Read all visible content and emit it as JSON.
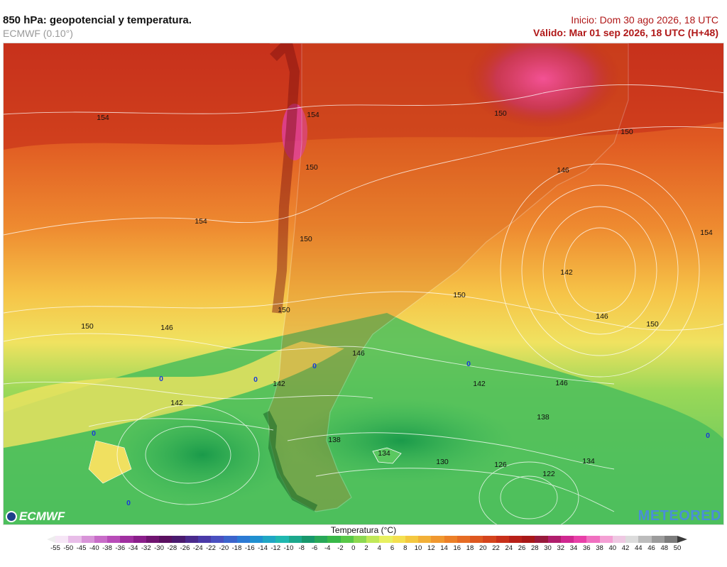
{
  "header": {
    "title": "850 hPa: geopotencial y temperatura.",
    "model": "ECMWF (0.10°)",
    "init": "Inicio: Dom 30 ago 2026, 18 UTC",
    "valid": "Válido: Mar 01 sep 2026, 18 UTC (H+48)"
  },
  "logos": {
    "left": "ECMWF",
    "right": "METEORED"
  },
  "map": {
    "contour_labels": [
      "154",
      "154",
      "154",
      "154",
      "150",
      "150",
      "150",
      "150",
      "150",
      "150",
      "150",
      "150",
      "146",
      "146",
      "146",
      "146",
      "146",
      "146",
      "142",
      "142",
      "142",
      "142",
      "138",
      "138",
      "134",
      "134",
      "130",
      "126",
      "122",
      "0",
      "0",
      "0",
      "0",
      "0",
      "0",
      "0"
    ]
  },
  "legend": {
    "title": "Temperatura (°C)",
    "ticks": [
      "-55",
      "-50",
      "-45",
      "-40",
      "-38",
      "-36",
      "-34",
      "-32",
      "-30",
      "-28",
      "-26",
      "-24",
      "-22",
      "-20",
      "-18",
      "-16",
      "-14",
      "-12",
      "-10",
      "-8",
      "-6",
      "-4",
      "-2",
      "0",
      "2",
      "4",
      "6",
      "8",
      "10",
      "12",
      "14",
      "16",
      "18",
      "20",
      "22",
      "24",
      "26",
      "28",
      "30",
      "32",
      "34",
      "36",
      "38",
      "40",
      "42",
      "44",
      "46",
      "48",
      "50"
    ],
    "colors": [
      "#f6e6f6",
      "#e8bde8",
      "#d894d8",
      "#c86cc8",
      "#b84cb8",
      "#a030a0",
      "#8a1e8a",
      "#701470",
      "#5a1060",
      "#4a1a6e",
      "#4a2a8c",
      "#4a3aa8",
      "#4a50c0",
      "#3c64cc",
      "#2c7ad4",
      "#2090d0",
      "#20a6c4",
      "#20b8b0",
      "#1ca88c",
      "#18986c",
      "#28a858",
      "#38b848",
      "#58c848",
      "#8cd850",
      "#c0e858",
      "#e8f060",
      "#f4e050",
      "#f4c840",
      "#f2b038",
      "#f09830",
      "#ec8028",
      "#e66c24",
      "#de5820",
      "#d4441c",
      "#c8301a",
      "#b82018",
      "#a81818",
      "#981a3c",
      "#b01e6c",
      "#d02890",
      "#e840a8",
      "#f070c0",
      "#f4a0d4",
      "#eec8e2",
      "#dcdcdc",
      "#bcbcbc",
      "#9c9c9c",
      "#7c7c7c"
    ]
  }
}
